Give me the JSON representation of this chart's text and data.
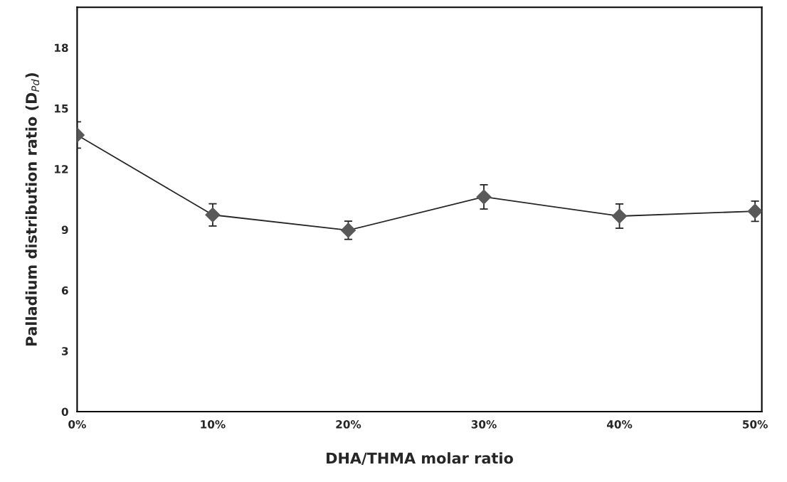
{
  "chart_data": {
    "type": "line",
    "xlabel": "DHA/THMA molar ratio",
    "ylabel": "Palladium distribution ratio (D$_{Pd}$)",
    "x": [
      0,
      10,
      20,
      30,
      40,
      50
    ],
    "series": [
      {
        "color": "#595959",
        "values": [
          13.68,
          9.73,
          8.97,
          10.62,
          9.67,
          9.91
        ],
        "errors": [
          0.65,
          0.55,
          0.45,
          0.6,
          0.6,
          0.5
        ]
      }
    ],
    "xlim": [
      0,
      50.5
    ],
    "xticks": [
      {
        "value": 0,
        "label": "0%"
      },
      {
        "value": 10,
        "label": "10%"
      },
      {
        "value": 20,
        "label": "20%"
      },
      {
        "value": 30,
        "label": "30%"
      },
      {
        "value": 40,
        "label": "40%"
      },
      {
        "value": 50,
        "label": "50%"
      }
    ],
    "ylim": [
      0,
      20
    ],
    "yticks": [
      0,
      3,
      6,
      9,
      12,
      15,
      18
    ],
    "marker": "diamond",
    "line_style": "solid",
    "grid": false,
    "legend": false
  }
}
